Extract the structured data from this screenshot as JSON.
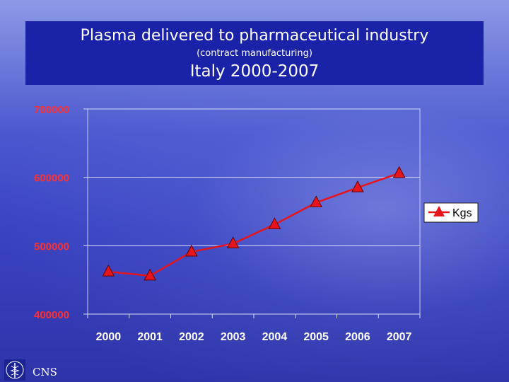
{
  "header": {
    "title": "Plasma delivered to pharmaceutical industry",
    "subtitle": "(contract manufacturing)",
    "region": "Italy 2000-2007"
  },
  "footer": {
    "logo_text": "CNS",
    "logo_icon": "caduceus-icon"
  },
  "colors": {
    "title_bg": "#1a22a8",
    "series": "#e8141c",
    "axis_text": "#ff3030",
    "x_tick_text": "#ffffff"
  },
  "chart_data": {
    "type": "line",
    "categories": [
      "2000",
      "2001",
      "2002",
      "2003",
      "2004",
      "2005",
      "2006",
      "2007"
    ],
    "series": [
      {
        "name": "Kgs",
        "values": [
          462000,
          456000,
          491000,
          503000,
          531000,
          563000,
          585000,
          606000
        ],
        "marker": "triangle"
      }
    ],
    "ylim": [
      400000,
      700000
    ],
    "yticks": [
      "400000",
      "500000",
      "600000",
      "700000"
    ],
    "grid": true,
    "legend_position": "right"
  }
}
